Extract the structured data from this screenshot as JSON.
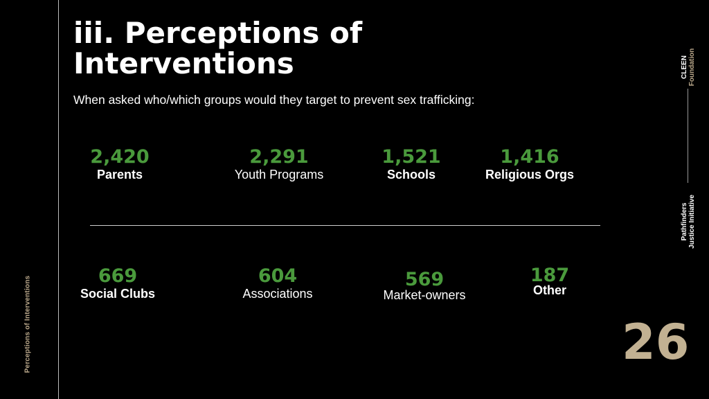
{
  "side_label": "Perceptions of Interventions",
  "title": "iii. Perceptions of Interventions",
  "subtitle": "When asked who/which groups would they target to prevent sex trafficking:",
  "stats_row1": [
    {
      "value": "2,420",
      "label": "Parents"
    },
    {
      "value": "2,291",
      "label": "Youth Programs"
    },
    {
      "value": "1,521",
      "label": "Schools"
    },
    {
      "value": "1,416",
      "label": "Religious Orgs"
    }
  ],
  "stats_row2": [
    {
      "value": "669",
      "label": "Social Clubs"
    },
    {
      "value": "604",
      "label": "Associations"
    },
    {
      "value": "569",
      "label": "Market-owners"
    },
    {
      "value": "187",
      "label": "Other"
    }
  ],
  "page_number": "26",
  "brand": {
    "cleen_line1": "CLEEN",
    "cleen_line2": "Foundation",
    "pathfinders_line1": "Pathfinders",
    "pathfinders_line2": "Justice Initiative"
  },
  "colors": {
    "accent_green": "#4a9a3c",
    "accent_tan": "#c2b192",
    "background": "#000000"
  }
}
